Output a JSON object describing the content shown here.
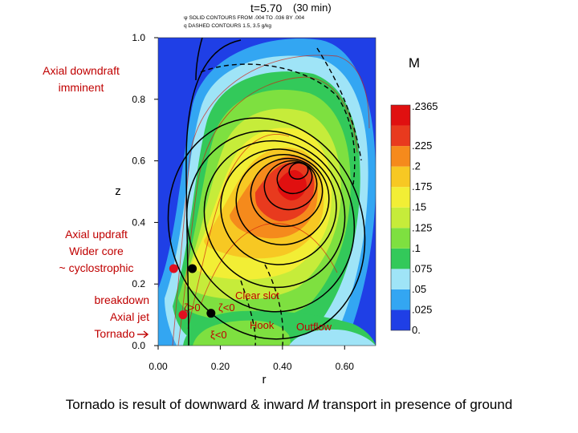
{
  "chart_data": {
    "type": "heatmap",
    "title": "t=5.70",
    "time_note": "(30 min)",
    "header_lines": [
      "ψ SOLID CONTOURS FROM .004 TO .036 BY .004",
      "q DASHED CONTOURS 1.5, 3.5 g/kg"
    ],
    "xlabel": "r",
    "ylabel": "z",
    "xlim": [
      0,
      0.7
    ],
    "ylim": [
      0,
      1.0
    ],
    "x_ticks": [
      "0.00",
      "0.20",
      "0.40",
      "0.60"
    ],
    "y_ticks": [
      "0.0",
      "0.2",
      "0.4",
      "0.6",
      "0.8",
      "1.0"
    ],
    "colorbar": {
      "title": "M",
      "levels": [
        "0.",
        ".025",
        ".05",
        ".075",
        ".1",
        ".125",
        ".15",
        ".175",
        ".2",
        ".225",
        ".2365"
      ],
      "colors": [
        "#1f3fe6",
        "#33a6f2",
        "#9fe4f7",
        "#33c95a",
        "#7ee040",
        "#c6ec3a",
        "#f2ee35",
        "#f7c823",
        "#f58a1c",
        "#e83a1e",
        "#e01010"
      ]
    },
    "annotations_left": {
      "downdraft": [
        "Axial downdraft",
        "imminent"
      ],
      "updraft": [
        "Axial updraft",
        "Wider core",
        "~ cyclostrophic"
      ],
      "breakdown": [
        "breakdown",
        "Axial jet",
        "Tornado"
      ]
    },
    "annotations_plot": {
      "zeta_pos": "ζ>0",
      "zeta_neg": "ζ<0",
      "zeta_neg2": "ξ<0",
      "clear_slot": "Clear slot",
      "hook": "Hook",
      "outflow": "Outflow"
    },
    "markers": [
      {
        "kind": "red",
        "r": 0.05,
        "z": 0.25
      },
      {
        "kind": "black",
        "r": 0.11,
        "z": 0.25
      },
      {
        "kind": "red",
        "r": 0.08,
        "z": 0.1
      },
      {
        "kind": "black",
        "r": 0.17,
        "z": 0.105
      }
    ],
    "caption_parts": {
      "pre": "Tornado is result of downward & inward ",
      "em": "M",
      "post": " transport in presence of ground"
    }
  }
}
